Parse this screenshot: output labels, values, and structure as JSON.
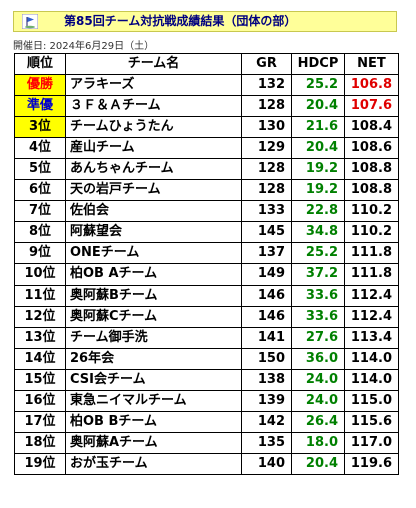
{
  "title": "第85回チーム対抗戦成績結果（団体の部）",
  "date": "開催日: 2024年6月29日（土）",
  "columns": [
    "順位",
    "チーム名",
    "GR",
    "HDCP",
    "NET"
  ],
  "rows": [
    {
      "rank": "優勝",
      "team": "アラキーズ",
      "gr": "132",
      "hdcp": "25.2",
      "net": "106.8"
    },
    {
      "rank": "準優",
      "team": "３Ｆ＆Ａチーム",
      "gr": "128",
      "hdcp": "20.4",
      "net": "107.6"
    },
    {
      "rank": "3位",
      "team": "チームひょうたん",
      "gr": "130",
      "hdcp": "21.6",
      "net": "108.4"
    },
    {
      "rank": "4位",
      "team": "産山チーム",
      "gr": "129",
      "hdcp": "20.4",
      "net": "108.6"
    },
    {
      "rank": "5位",
      "team": "あんちゃんチーム",
      "gr": "128",
      "hdcp": "19.2",
      "net": "108.8"
    },
    {
      "rank": "6位",
      "team": "天の岩戸チーム",
      "gr": "128",
      "hdcp": "19.2",
      "net": "108.8"
    },
    {
      "rank": "7位",
      "team": "佐伯会",
      "gr": "133",
      "hdcp": "22.8",
      "net": "110.2"
    },
    {
      "rank": "8位",
      "team": "阿蘇望会",
      "gr": "145",
      "hdcp": "34.8",
      "net": "110.2"
    },
    {
      "rank": "9位",
      "team": "ONEチーム",
      "gr": "137",
      "hdcp": "25.2",
      "net": "111.8"
    },
    {
      "rank": "10位",
      "team": "柏OB Aチーム",
      "gr": "149",
      "hdcp": "37.2",
      "net": "111.8"
    },
    {
      "rank": "11位",
      "team": "奥阿蘇Bチーム",
      "gr": "146",
      "hdcp": "33.6",
      "net": "112.4"
    },
    {
      "rank": "12位",
      "team": "奥阿蘇Cチーム",
      "gr": "146",
      "hdcp": "33.6",
      "net": "112.4"
    },
    {
      "rank": "13位",
      "team": "チーム御手洗",
      "gr": "141",
      "hdcp": "27.6",
      "net": "113.4"
    },
    {
      "rank": "14位",
      "team": "26年会",
      "gr": "150",
      "hdcp": "36.0",
      "net": "114.0"
    },
    {
      "rank": "15位",
      "team": "CSI会チーム",
      "gr": "138",
      "hdcp": "24.0",
      "net": "114.0"
    },
    {
      "rank": "16位",
      "team": "東急ニイマルチーム",
      "gr": "139",
      "hdcp": "24.0",
      "net": "115.0"
    },
    {
      "rank": "17位",
      "team": "柏OB Bチーム",
      "gr": "142",
      "hdcp": "26.4",
      "net": "115.6"
    },
    {
      "rank": "18位",
      "team": "奥阿蘇Aチーム",
      "gr": "135",
      "hdcp": "18.0",
      "net": "117.0"
    },
    {
      "rank": "19位",
      "team": "おが玉チーム",
      "gr": "140",
      "hdcp": "20.4",
      "net": "119.6"
    }
  ],
  "colors": {
    "title_bg": "#ffff99",
    "title_text": "#000080",
    "rank_highlight": "#ffff00",
    "winner_text": "#ff0000",
    "runner_up_text": "#0000cc",
    "hdcp_text": "#008000",
    "net_top_text": "#e00000"
  },
  "icons": {
    "title": "flag-icon"
  }
}
